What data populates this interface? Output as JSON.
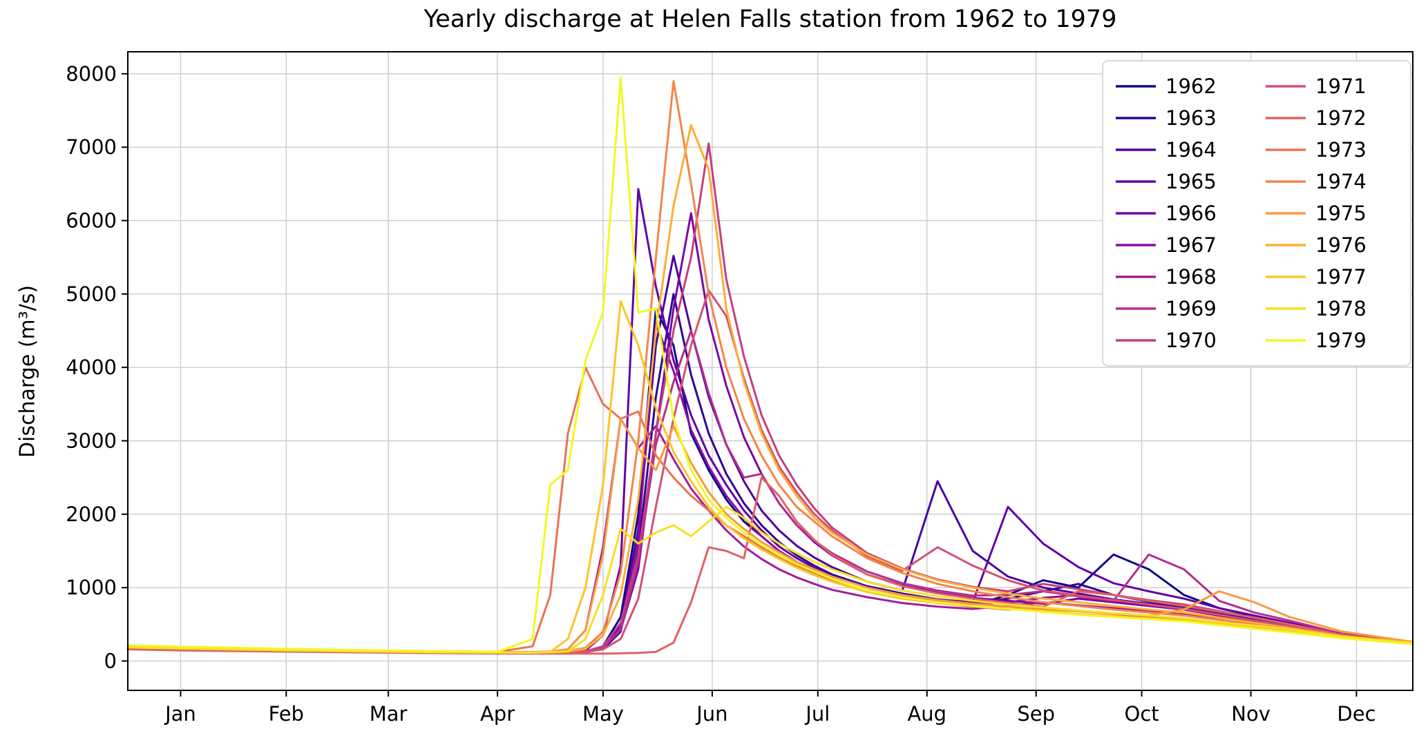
{
  "figure": {
    "background": "#ffffff"
  },
  "chart_data": {
    "type": "line",
    "title": "Yearly discharge at Helen Falls station from 1962 to 1979",
    "xlabel": "",
    "ylabel": "Discharge (m³/s)",
    "x_unit": "day_of_year",
    "xlim": [
      0,
      365
    ],
    "ylim": [
      -400,
      8300
    ],
    "grid": true,
    "grid_color": "#cccccc",
    "axis_color": "#000000",
    "line_width": 3,
    "legend": {
      "location": "upper right",
      "ncol": 2,
      "rows_per_col": 9,
      "frame_color": "#cccccc"
    },
    "yticks": [
      0,
      1000,
      2000,
      3000,
      4000,
      5000,
      6000,
      7000,
      8000
    ],
    "xticks": {
      "days": [
        15,
        45,
        74,
        105,
        135,
        166,
        196,
        227,
        258,
        288,
        319,
        349
      ],
      "labels": [
        "Jan",
        "Feb",
        "Mar",
        "Apr",
        "May",
        "Jun",
        "Jul",
        "Aug",
        "Sep",
        "Oct",
        "Nov",
        "Dec"
      ]
    },
    "x": [
      0,
      15,
      30,
      45,
      60,
      75,
      90,
      105,
      115,
      120,
      125,
      130,
      135,
      140,
      145,
      150,
      155,
      160,
      165,
      170,
      175,
      180,
      185,
      190,
      195,
      200,
      210,
      220,
      230,
      240,
      250,
      260,
      270,
      280,
      290,
      300,
      310,
      320,
      330,
      345,
      365
    ],
    "series": [
      {
        "name": "1962",
        "color": "#0d0887",
        "values": [
          180,
          160,
          150,
          140,
          130,
          120,
          115,
          110,
          110,
          112,
          116,
          125,
          200,
          600,
          2000,
          4800,
          4300,
          3100,
          2600,
          2200,
          1900,
          1700,
          1500,
          1350,
          1220,
          1100,
          950,
          860,
          800,
          760,
          900,
          1100,
          1000,
          1450,
          1250,
          900,
          720,
          610,
          510,
          360,
          250
        ]
      },
      {
        "name": "1963",
        "color": "#2c0594",
        "values": [
          170,
          155,
          145,
          135,
          125,
          118,
          112,
          108,
          108,
          111,
          116,
          124,
          160,
          400,
          1500,
          3600,
          5000,
          3900,
          3100,
          2550,
          2150,
          1850,
          1620,
          1440,
          1300,
          1180,
          1020,
          920,
          840,
          790,
          850,
          950,
          1050,
          900,
          810,
          740,
          650,
          560,
          470,
          330,
          235
        ]
      },
      {
        "name": "1964",
        "color": "#4903a0",
        "values": [
          190,
          170,
          158,
          145,
          135,
          125,
          118,
          112,
          112,
          115,
          121,
          130,
          180,
          500,
          1800,
          4300,
          5520,
          4500,
          3600,
          2950,
          2450,
          2050,
          1780,
          1570,
          1410,
          1280,
          1080,
          960,
          2450,
          1500,
          1150,
          1000,
          920,
          840,
          780,
          720,
          640,
          560,
          470,
          340,
          245
        ]
      },
      {
        "name": "1965",
        "color": "#6100a7",
        "values": [
          200,
          180,
          165,
          150,
          140,
          130,
          122,
          115,
          115,
          119,
          126,
          145,
          350,
          1300,
          6430,
          5100,
          4100,
          3350,
          2800,
          2400,
          2050,
          1780,
          1560,
          1400,
          1270,
          1160,
          1000,
          900,
          840,
          800,
          2100,
          1600,
          1280,
          1060,
          950,
          850,
          720,
          620,
          520,
          360,
          260
        ]
      },
      {
        "name": "1966",
        "color": "#7705a8",
        "values": [
          185,
          168,
          155,
          142,
          132,
          122,
          115,
          110,
          110,
          113,
          119,
          128,
          170,
          420,
          1250,
          3100,
          4800,
          6100,
          4650,
          3750,
          3050,
          2550,
          2150,
          1850,
          1620,
          1440,
          1180,
          1030,
          930,
          860,
          820,
          780,
          850,
          800,
          750,
          700,
          620,
          540,
          460,
          330,
          240
        ]
      },
      {
        "name": "1967",
        "color": "#8d0ca4",
        "values": [
          175,
          160,
          148,
          136,
          127,
          118,
          112,
          107,
          107,
          110,
          116,
          124,
          165,
          450,
          1650,
          4600,
          3950,
          3150,
          2650,
          2250,
          1950,
          1700,
          1500,
          1340,
          1210,
          1100,
          960,
          870,
          810,
          770,
          800,
          860,
          900,
          830,
          760,
          700,
          620,
          540,
          460,
          330,
          235
        ]
      },
      {
        "name": "1968",
        "color": "#a11d9a",
        "values": [
          180,
          165,
          152,
          140,
          130,
          121,
          114,
          109,
          110,
          118,
          160,
          420,
          1550,
          3300,
          2900,
          3200,
          2750,
          2350,
          2050,
          1780,
          1560,
          1390,
          1250,
          1140,
          1050,
          970,
          870,
          790,
          740,
          710,
          750,
          800,
          760,
          720,
          680,
          640,
          580,
          510,
          440,
          320,
          230
        ]
      },
      {
        "name": "1969",
        "color": "#b42e8d",
        "values": [
          185,
          168,
          155,
          143,
          133,
          124,
          117,
          111,
          111,
          114,
          121,
          130,
          180,
          430,
          1350,
          2950,
          3800,
          4500,
          3650,
          2950,
          2500,
          2550,
          2150,
          1850,
          1640,
          1470,
          1220,
          1060,
          960,
          890,
          900,
          950,
          880,
          820,
          1450,
          1250,
          820,
          660,
          550,
          370,
          260
        ]
      },
      {
        "name": "1970",
        "color": "#c43e7f",
        "values": [
          195,
          175,
          160,
          148,
          137,
          127,
          119,
          113,
          113,
          116,
          123,
          133,
          200,
          520,
          1450,
          3100,
          4500,
          5500,
          7050,
          5200,
          4150,
          3350,
          2800,
          2400,
          2080,
          1820,
          1470,
          1260,
          1110,
          1010,
          950,
          1050,
          980,
          900,
          830,
          770,
          680,
          590,
          500,
          360,
          255
        ]
      },
      {
        "name": "1971",
        "color": "#d25171",
        "values": [
          190,
          172,
          158,
          146,
          136,
          126,
          118,
          112,
          112,
          115,
          121,
          128,
          160,
          300,
          850,
          2100,
          3300,
          4300,
          5050,
          4700,
          3850,
          3150,
          2650,
          2300,
          2000,
          1780,
          1430,
          1230,
          1550,
          1300,
          1100,
          960,
          890,
          830,
          770,
          710,
          630,
          550,
          470,
          340,
          245
        ]
      },
      {
        "name": "1972",
        "color": "#df6263",
        "values": [
          160,
          145,
          135,
          128,
          120,
          113,
          107,
          102,
          100,
          100,
          100,
          100,
          100,
          105,
          110,
          125,
          250,
          800,
          1550,
          1500,
          1400,
          2500,
          2250,
          1900,
          1650,
          1450,
          1180,
          1020,
          920,
          850,
          790,
          740,
          950,
          900,
          820,
          750,
          670,
          590,
          500,
          350,
          245
        ]
      },
      {
        "name": "1973",
        "color": "#e97257",
        "values": [
          210,
          190,
          175,
          160,
          150,
          140,
          132,
          125,
          200,
          900,
          3100,
          4000,
          3500,
          3300,
          3400,
          2800,
          2500,
          2250,
          2050,
          1850,
          1700,
          1550,
          1420,
          1300,
          1200,
          1100,
          950,
          860,
          790,
          740,
          700,
          720,
          680,
          640,
          600,
          560,
          510,
          460,
          410,
          320,
          235
        ]
      },
      {
        "name": "1974",
        "color": "#f3854b",
        "values": [
          200,
          180,
          165,
          152,
          142,
          132,
          124,
          118,
          118,
          124,
          135,
          180,
          400,
          1200,
          3000,
          5500,
          7900,
          6500,
          5000,
          4000,
          3300,
          2800,
          2400,
          2100,
          1900,
          1700,
          1400,
          1200,
          1050,
          950,
          870,
          800,
          750,
          700,
          660,
          620,
          560,
          500,
          430,
          340,
          250
        ]
      },
      {
        "name": "1975",
        "color": "#f89a3e",
        "values": [
          205,
          185,
          170,
          158,
          147,
          137,
          129,
          122,
          122,
          130,
          160,
          420,
          1450,
          3300,
          2900,
          2600,
          3200,
          2700,
          2300,
          2000,
          1800,
          1620,
          1480,
          1350,
          1250,
          1150,
          1000,
          900,
          830,
          780,
          740,
          700,
          680,
          650,
          620,
          700,
          950,
          800,
          600,
          400,
          260
        ]
      },
      {
        "name": "1976",
        "color": "#fcae32",
        "values": [
          195,
          178,
          163,
          150,
          140,
          130,
          122,
          116,
          116,
          121,
          130,
          165,
          350,
          900,
          2200,
          4500,
          6200,
          7300,
          6700,
          4800,
          3800,
          3100,
          2600,
          2250,
          1950,
          1750,
          1450,
          1250,
          1100,
          1000,
          920,
          850,
          800,
          750,
          700,
          660,
          590,
          520,
          450,
          340,
          250
        ]
      },
      {
        "name": "1977",
        "color": "#fcc527",
        "values": [
          190,
          175,
          160,
          148,
          138,
          128,
          120,
          114,
          114,
          124,
          300,
          1000,
          2400,
          4900,
          4300,
          3450,
          2850,
          2450,
          2100,
          1850,
          1670,
          1520,
          1390,
          1270,
          1170,
          1080,
          940,
          850,
          790,
          750,
          710,
          680,
          640,
          610,
          580,
          550,
          500,
          450,
          400,
          320,
          240
        ]
      },
      {
        "name": "1978",
        "color": "#f7e025",
        "values": [
          185,
          170,
          157,
          145,
          135,
          126,
          119,
          113,
          113,
          118,
          130,
          300,
          900,
          1800,
          1600,
          1750,
          1850,
          1700,
          1900,
          2100,
          1950,
          1750,
          1600,
          1470,
          1350,
          1250,
          1080,
          960,
          880,
          820,
          770,
          730,
          690,
          650,
          620,
          580,
          530,
          480,
          430,
          330,
          245
        ]
      },
      {
        "name": "1979",
        "color": "#f0f921",
        "values": [
          215,
          195,
          180,
          165,
          152,
          142,
          132,
          125,
          300,
          2400,
          2600,
          4100,
          4750,
          7950,
          4750,
          4800,
          3300,
          2600,
          2200,
          1950,
          1750,
          1580,
          1440,
          1320,
          1220,
          1120,
          960,
          870,
          800,
          750,
          710,
          670,
          630,
          600,
          570,
          540,
          490,
          440,
          390,
          310,
          230
        ]
      }
    ]
  }
}
